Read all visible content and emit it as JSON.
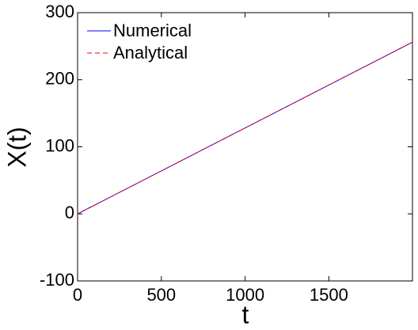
{
  "chart_data": {
    "type": "line",
    "x_label": "t",
    "y_label": "X(t)",
    "series": [
      {
        "name": "Numerical",
        "color": "#0000ff",
        "dash": false,
        "x": [
          0,
          1999
        ],
        "values": [
          0,
          256
        ]
      },
      {
        "name": "Analytical",
        "color": "#ff0000",
        "dash": true,
        "x": [
          0,
          1999
        ],
        "values": [
          0,
          256
        ]
      }
    ],
    "xlim": [
      0,
      1999
    ],
    "xticks": [
      0,
      500,
      1000,
      1500
    ],
    "ylim": [
      -100,
      300
    ],
    "yticks": [
      -100,
      0,
      100,
      200,
      300
    ],
    "grid": false,
    "legend": "top-left"
  }
}
